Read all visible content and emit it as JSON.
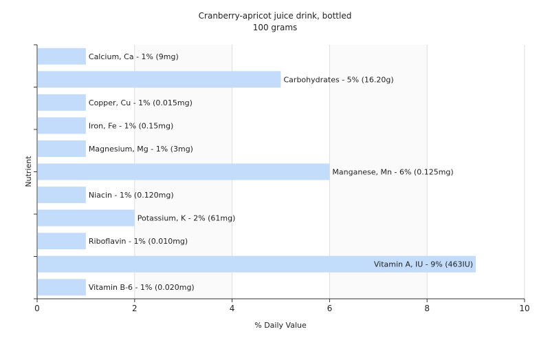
{
  "chart_data": {
    "type": "bar",
    "orientation": "horizontal",
    "title": "Cranberry-apricot juice drink, bottled",
    "subtitle": "100 grams",
    "xlabel": "% Daily Value",
    "ylabel": "Nutrient",
    "xlim": [
      0,
      10
    ],
    "xticks": [
      "0",
      "2",
      "4",
      "6",
      "8",
      "10"
    ],
    "grid": true,
    "bar_color": "#c3dcfb",
    "categories": [
      "Calcium, Ca",
      "Carbohydrates",
      "Copper, Cu",
      "Iron, Fe",
      "Magnesium, Mg",
      "Manganese, Mn",
      "Niacin",
      "Potassium, K",
      "Riboflavin",
      "Vitamin A, IU",
      "Vitamin B-6"
    ],
    "values": [
      1,
      5,
      1,
      1,
      1,
      6,
      1,
      2,
      1,
      9,
      1
    ],
    "labels": [
      "Calcium, Ca - 1% (9mg)",
      "Carbohydrates - 5% (16.20g)",
      "Copper, Cu - 1% (0.015mg)",
      "Iron, Fe - 1% (0.15mg)",
      "Magnesium, Mg - 1% (3mg)",
      "Manganese, Mn - 6% (0.125mg)",
      "Niacin - 1% (0.120mg)",
      "Potassium, K - 2% (61mg)",
      "Riboflavin - 1% (0.010mg)",
      "Vitamin A, IU - 9% (463IU)",
      "Vitamin B-6 - 1% (0.020mg)"
    ]
  }
}
